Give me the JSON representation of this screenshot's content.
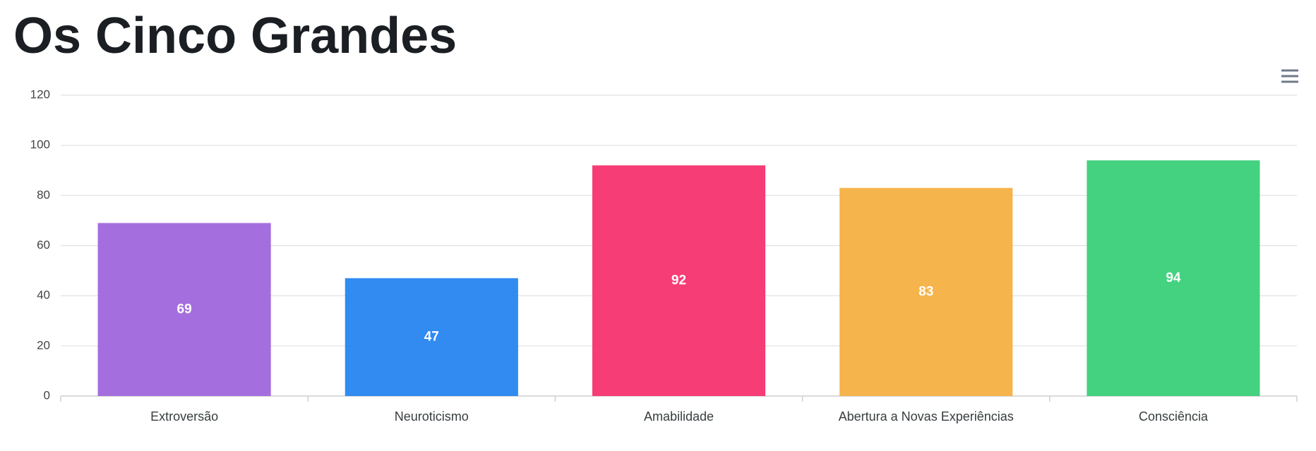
{
  "chart_data": {
    "type": "bar",
    "title": "Os Cinco Grandes",
    "categories": [
      "Extroversão",
      "Neuroticismo",
      "Amabilidade",
      "Abertura a Novas Experiências",
      "Consciência"
    ],
    "values": [
      69,
      47,
      92,
      83,
      94
    ],
    "colors": [
      "#a066dc",
      "#2685f0",
      "#f5336f",
      "#f5b043",
      "#3ad07a"
    ],
    "ylim": [
      0,
      120
    ],
    "yticks": [
      0,
      20,
      40,
      60,
      80,
      100,
      120
    ],
    "grid": true
  }
}
